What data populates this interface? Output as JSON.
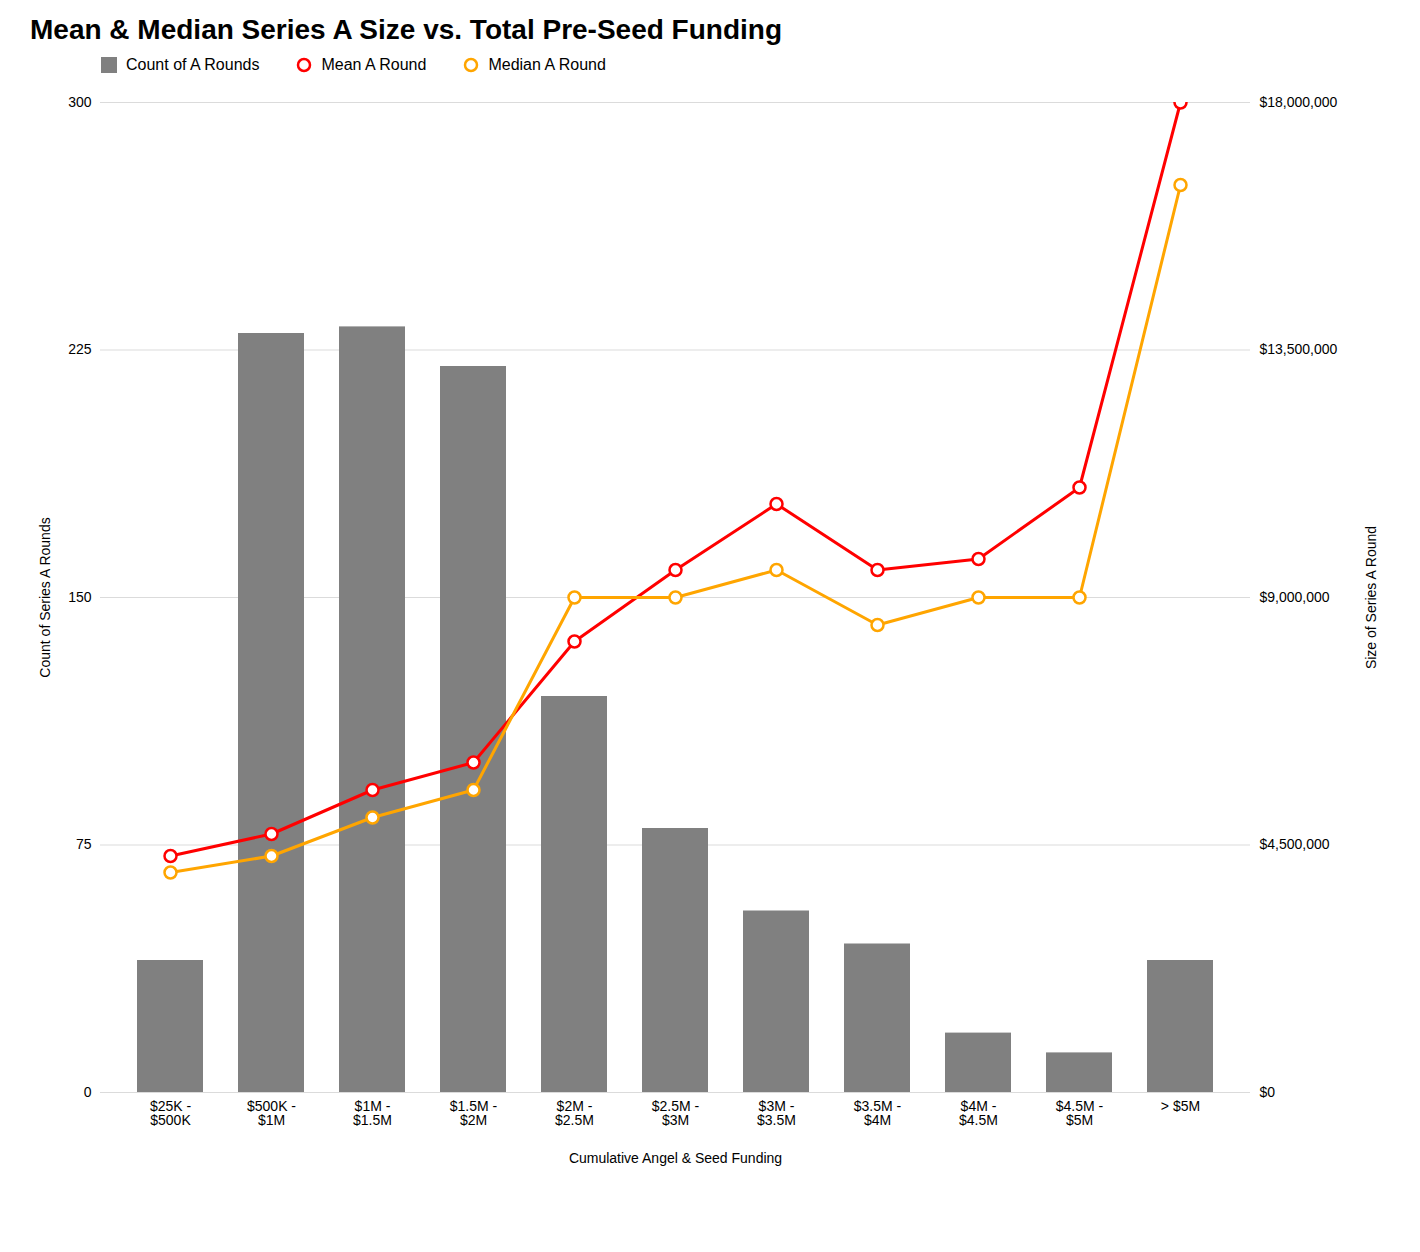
{
  "chart_data": {
    "type": "bar",
    "title": "Mean & Median Series A Size vs. Total Pre-Seed Funding",
    "xlabel": "Cumulative Angel & Seed Funding",
    "ylabel": "Count of Series A Rounds",
    "y2label": "Size of Series A Round",
    "categories": [
      "$25K -\n$500K",
      "$500K -\n$1M",
      "$1M -\n$1.5M",
      "$1.5M -\n$2M",
      "$2M -\n$2.5M",
      "$2.5M -\n$3M",
      "$3M -\n$3.5M",
      "$3.5M -\n$4M",
      "$4M -\n$4.5M",
      "$4.5M -\n$5M",
      "> $5M"
    ],
    "series": [
      {
        "name": "Count of A Rounds",
        "type": "bar",
        "color": "#808080",
        "values": [
          40,
          230,
          232,
          220,
          120,
          80,
          55,
          45,
          18,
          12,
          40
        ]
      },
      {
        "name": "Mean A Round",
        "type": "line",
        "axis": "y2",
        "color": "#FF0000",
        "marker": "circle",
        "values": [
          4300000,
          4700000,
          5500000,
          6000000,
          8200000,
          9500000,
          10700000,
          9500000,
          9700000,
          11000000,
          18000000
        ]
      },
      {
        "name": "Median A Round",
        "type": "line",
        "axis": "y2",
        "color": "#FFA500",
        "marker": "circle",
        "values": [
          4000000,
          4300000,
          5000000,
          5500000,
          9000000,
          9000000,
          9500000,
          8500000,
          9000000,
          9000000,
          16500000
        ]
      }
    ],
    "ylim": [
      0,
      300
    ],
    "yticks": [
      0,
      75,
      150,
      225,
      300
    ],
    "y2lim": [
      0,
      18000000
    ],
    "y2ticks": [
      {
        "value": 0,
        "label": "$0"
      },
      {
        "value": 4500000,
        "label": "$4,500,000"
      },
      {
        "value": 9000000,
        "label": "$9,000,000"
      },
      {
        "value": 13500000,
        "label": "$13,500,000"
      },
      {
        "value": 18000000,
        "label": "$18,000,000"
      }
    ],
    "grid": true,
    "legend": "top"
  }
}
